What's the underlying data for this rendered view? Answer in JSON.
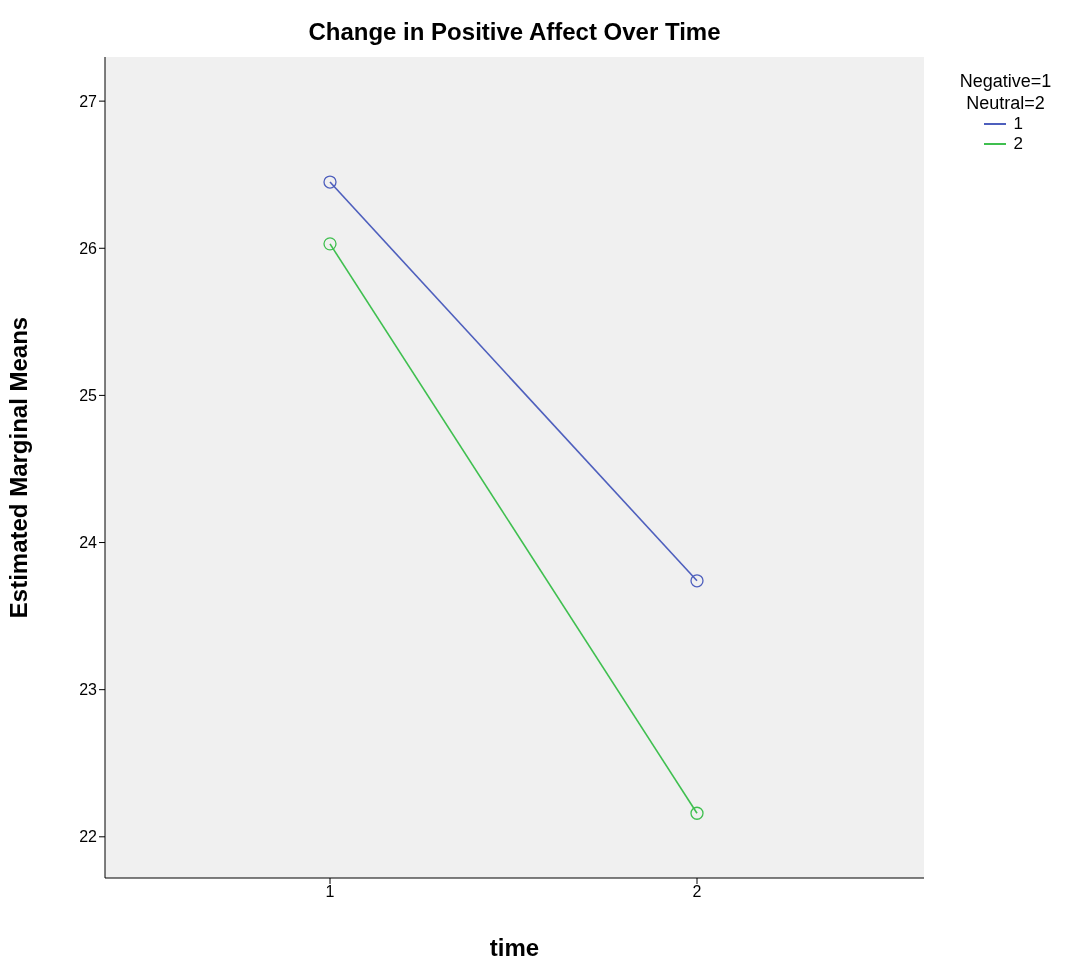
{
  "chart_data": {
    "type": "line",
    "title": "Change in Positive Affect Over Time",
    "xlabel": "time",
    "ylabel": "Estimated Marginal Means",
    "legend_title": "Negative=1\nNeutral=2",
    "categories": [
      "1",
      "2"
    ],
    "series": [
      {
        "name": "1",
        "color": "#4e5fbd",
        "values": [
          26.45,
          23.74
        ]
      },
      {
        "name": "2",
        "color": "#3fbf4f",
        "values": [
          26.03,
          22.16
        ]
      }
    ],
    "ylim": [
      21.72,
      27.3
    ],
    "yticks": [
      22,
      23,
      24,
      25,
      26,
      27
    ],
    "grid": false,
    "legend": "top right",
    "marker": "circle",
    "line_style": "solid"
  }
}
